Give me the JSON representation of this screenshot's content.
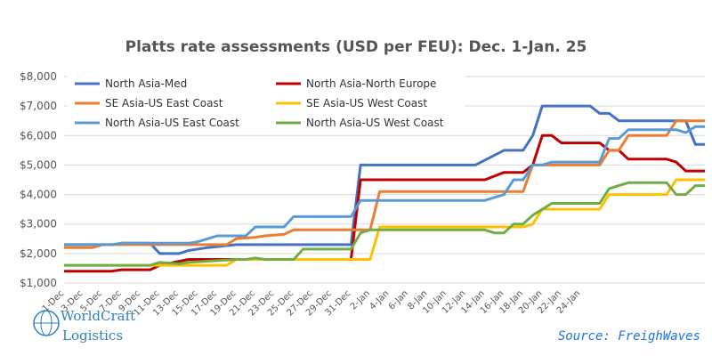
{
  "chart_data": {
    "type": "line",
    "title": "Platts rate assessments (USD per FEU): Dec. 1-Jan. 25",
    "xlabel": "",
    "ylabel": "",
    "x_tick_labels": [
      "1-Dec",
      "3-Dec",
      "5-Dec",
      "7-Dec",
      "9-Dec",
      "11-Dec",
      "13-Dec",
      "15-Dec",
      "17-Dec",
      "19-Dec",
      "21-Dec",
      "23-Dec",
      "25-Dec",
      "27-Dec",
      "29-Dec",
      "31-Dec",
      "2-Jan",
      "4-Jan",
      "6-Jan",
      "8-Jan",
      "10-Jan",
      "12-Jan",
      "14-Jan",
      "16-Jan",
      "18-Jan",
      "20-Jan",
      "22-Jan",
      "24-Jan"
    ],
    "x_index_range": [
      0,
      55
    ],
    "y_ticks": [
      "$1,000",
      "$2,000",
      "$3,000",
      "$4,000",
      "$5,000",
      "$6,000",
      "$7,000",
      "$8,000"
    ],
    "ylim": [
      1000,
      8000
    ],
    "grid": true,
    "legend_position": "top-left",
    "series": [
      {
        "name": "North Asia-Med",
        "color": "#4472c4",
        "points": [
          [
            0,
            2300
          ],
          [
            3,
            2300
          ],
          [
            4,
            2300
          ],
          [
            5,
            2300
          ],
          [
            6,
            2350
          ],
          [
            9,
            2350
          ],
          [
            10,
            2000
          ],
          [
            12,
            2000
          ],
          [
            13,
            2100
          ],
          [
            15,
            2200
          ],
          [
            18,
            2300
          ],
          [
            20,
            2300
          ],
          [
            29,
            2300
          ],
          [
            30,
            2300
          ],
          [
            31,
            5000
          ],
          [
            43,
            5000
          ],
          [
            46,
            5500
          ],
          [
            47,
            5500
          ],
          [
            48,
            5500
          ],
          [
            49,
            6000
          ],
          [
            50,
            7000
          ],
          [
            54,
            7000
          ],
          [
            55,
            7000
          ],
          [
            56,
            6750
          ],
          [
            57,
            6750
          ],
          [
            58,
            6500
          ],
          [
            62,
            6500
          ],
          [
            63,
            6500
          ],
          [
            64,
            6500
          ],
          [
            65,
            6500
          ],
          [
            66,
            5700
          ],
          [
            67,
            5700
          ]
        ]
      },
      {
        "name": "North Asia-North Europe",
        "color": "#c00000",
        "points": [
          [
            0,
            1400
          ],
          [
            5,
            1400
          ],
          [
            6,
            1450
          ],
          [
            9,
            1450
          ],
          [
            10,
            1600
          ],
          [
            13,
            1800
          ],
          [
            14,
            1800
          ],
          [
            28,
            1800
          ],
          [
            29,
            1800
          ],
          [
            30,
            1800
          ],
          [
            31,
            4500
          ],
          [
            44,
            4500
          ],
          [
            46,
            4750
          ],
          [
            48,
            4750
          ],
          [
            49,
            5000
          ],
          [
            50,
            6000
          ],
          [
            51,
            6000
          ],
          [
            52,
            5750
          ],
          [
            56,
            5750
          ],
          [
            57,
            5500
          ],
          [
            58,
            5500
          ],
          [
            59,
            5200
          ],
          [
            63,
            5200
          ],
          [
            64,
            5100
          ],
          [
            65,
            4800
          ],
          [
            67,
            4800
          ]
        ]
      },
      {
        "name": "SE Asia-US East Coast",
        "color": "#ed7d31",
        "points": [
          [
            0,
            2200
          ],
          [
            3,
            2200
          ],
          [
            4,
            2300
          ],
          [
            13,
            2300
          ],
          [
            14,
            2300
          ],
          [
            17,
            2300
          ],
          [
            18,
            2500
          ],
          [
            20,
            2550
          ],
          [
            21,
            2600
          ],
          [
            23,
            2650
          ],
          [
            24,
            2800
          ],
          [
            28,
            2800
          ],
          [
            30,
            2800
          ],
          [
            31,
            2800
          ],
          [
            32,
            2800
          ],
          [
            33,
            4100
          ],
          [
            48,
            4100
          ],
          [
            49,
            5000
          ],
          [
            56,
            5000
          ],
          [
            57,
            5500
          ],
          [
            58,
            5500
          ],
          [
            59,
            6000
          ],
          [
            63,
            6000
          ],
          [
            64,
            6500
          ],
          [
            67,
            6500
          ]
        ]
      },
      {
        "name": "SE Asia-US West Coast",
        "color": "#ffc000",
        "points": [
          [
            0,
            1600
          ],
          [
            3,
            1600
          ],
          [
            4,
            1600
          ],
          [
            17,
            1600
          ],
          [
            18,
            1800
          ],
          [
            22,
            1800
          ],
          [
            30,
            1800
          ],
          [
            32,
            1800
          ],
          [
            33,
            2900
          ],
          [
            44,
            2900
          ],
          [
            45,
            2900
          ],
          [
            48,
            2900
          ],
          [
            49,
            3000
          ],
          [
            50,
            3500
          ],
          [
            56,
            3500
          ],
          [
            57,
            4000
          ],
          [
            63,
            4000
          ],
          [
            64,
            4500
          ],
          [
            67,
            4500
          ]
        ]
      },
      {
        "name": "North Asia-US East Coast",
        "color": "#5b9bd5",
        "points": [
          [
            0,
            2300
          ],
          [
            5,
            2300
          ],
          [
            6,
            2350
          ],
          [
            13,
            2350
          ],
          [
            14,
            2400
          ],
          [
            15,
            2500
          ],
          [
            16,
            2600
          ],
          [
            19,
            2600
          ],
          [
            20,
            2900
          ],
          [
            23,
            2900
          ],
          [
            24,
            3250
          ],
          [
            30,
            3250
          ],
          [
            31,
            3800
          ],
          [
            44,
            3800
          ],
          [
            46,
            4000
          ],
          [
            47,
            4500
          ],
          [
            48,
            4500
          ],
          [
            49,
            5000
          ],
          [
            50,
            5000
          ],
          [
            51,
            5100
          ],
          [
            56,
            5100
          ],
          [
            57,
            5900
          ],
          [
            58,
            5900
          ],
          [
            59,
            6200
          ],
          [
            64,
            6200
          ],
          [
            65,
            6100
          ],
          [
            66,
            6300
          ],
          [
            67,
            6300
          ]
        ]
      },
      {
        "name": "North Asia-US West Coast",
        "color": "#70ad47",
        "points": [
          [
            0,
            1600
          ],
          [
            9,
            1600
          ],
          [
            10,
            1700
          ],
          [
            12,
            1650
          ],
          [
            13,
            1700
          ],
          [
            18,
            1800
          ],
          [
            19,
            1800
          ],
          [
            20,
            1850
          ],
          [
            21,
            1800
          ],
          [
            24,
            1800
          ],
          [
            25,
            2150
          ],
          [
            29,
            2150
          ],
          [
            30,
            2150
          ],
          [
            31,
            2700
          ],
          [
            32,
            2800
          ],
          [
            44,
            2800
          ],
          [
            45,
            2700
          ],
          [
            46,
            2700
          ],
          [
            47,
            3000
          ],
          [
            48,
            3000
          ],
          [
            49,
            3300
          ],
          [
            50,
            3500
          ],
          [
            51,
            3700
          ],
          [
            56,
            3700
          ],
          [
            57,
            4200
          ],
          [
            58,
            4300
          ],
          [
            59,
            4400
          ],
          [
            62,
            4400
          ],
          [
            63,
            4400
          ],
          [
            64,
            4000
          ],
          [
            65,
            4000
          ],
          [
            66,
            4300
          ],
          [
            67,
            4300
          ]
        ]
      }
    ]
  },
  "logo": {
    "line1": "WorldCraft",
    "line2": "Logistics"
  },
  "source_note": "Source: FreighWaves"
}
